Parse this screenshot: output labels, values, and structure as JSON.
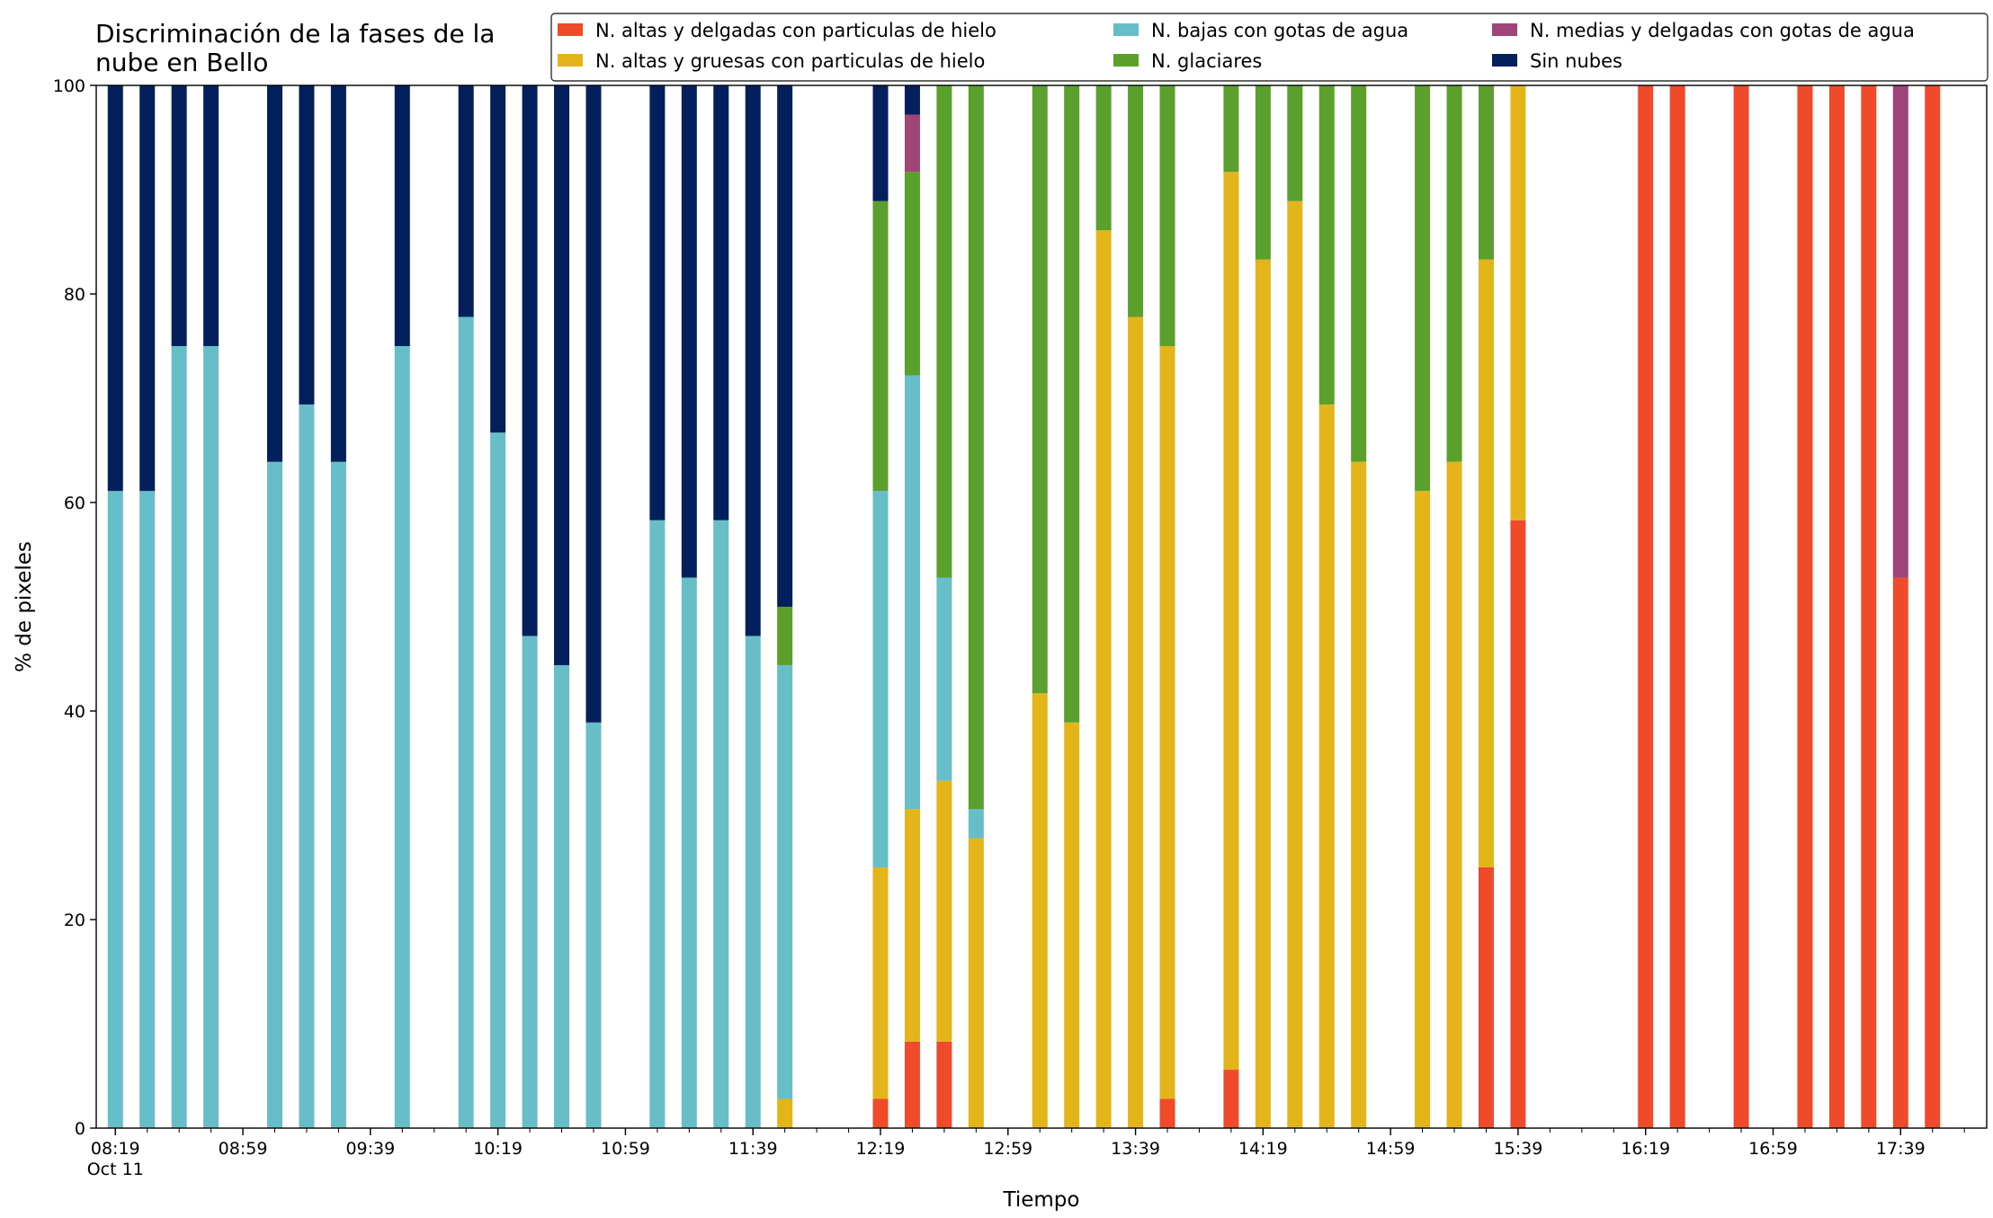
{
  "chart_data": {
    "type": "stacked_bar",
    "title": "Discriminación de la fases de la\nnube en Bello",
    "xlabel": "Tiempo",
    "ylabel": "% de pixeles",
    "x_date_label": "Oct 11",
    "x": [
      "08:19",
      "08:29",
      "08:39",
      "08:49",
      "09:09",
      "09:19",
      "09:29",
      "09:49",
      "10:09",
      "10:19",
      "10:29",
      "10:39",
      "10:49",
      "11:09",
      "11:19",
      "11:29",
      "11:39",
      "11:49",
      "12:19",
      "12:29",
      "12:39",
      "12:49",
      "13:09",
      "13:19",
      "13:29",
      "13:39",
      "13:49",
      "14:09",
      "14:19",
      "14:29",
      "14:39",
      "14:49",
      "15:09",
      "15:19",
      "15:29",
      "15:39",
      "16:19",
      "16:29",
      "16:49",
      "17:09",
      "17:19",
      "17:29",
      "17:39",
      "17:49"
    ],
    "xlim": [
      "08:13",
      "18:06"
    ],
    "xticks": [
      "08:19",
      "08:59",
      "09:39",
      "10:19",
      "10:59",
      "11:39",
      "12:19",
      "12:59",
      "13:39",
      "14:19",
      "14:59",
      "15:39",
      "16:19",
      "16:59",
      "17:39"
    ],
    "ylim": [
      0,
      100
    ],
    "yticks": [
      0,
      20,
      40,
      60,
      80,
      100
    ],
    "legend": "upper right",
    "series": [
      {
        "name": "N. altas y delgadas con particulas de hielo",
        "color": "#ef4b2b",
        "values": [
          0,
          0,
          0,
          0,
          0,
          0,
          0,
          0,
          0,
          0,
          0,
          0,
          0,
          0,
          0,
          0,
          0,
          0,
          2.8,
          8.3,
          8.3,
          0,
          0,
          0,
          0,
          0,
          2.8,
          5.6,
          0,
          0,
          0,
          0,
          0,
          0,
          25,
          58.3,
          100,
          100,
          100,
          100,
          100,
          100,
          52.8,
          100
        ]
      },
      {
        "name": "N. altas y gruesas con particulas de hielo",
        "color": "#e3b51b",
        "values": [
          0,
          0,
          0,
          0,
          0,
          0,
          0,
          0,
          0,
          0,
          0,
          0,
          0,
          0,
          0,
          0,
          0,
          2.8,
          22.2,
          22.3,
          25,
          27.8,
          41.7,
          38.9,
          86.1,
          77.8,
          72.2,
          86.1,
          83.3,
          88.9,
          69.4,
          63.9,
          61.1,
          63.9,
          58.3,
          41.7,
          0,
          0,
          0,
          0,
          0,
          0,
          0,
          0
        ]
      },
      {
        "name": "N. bajas con gotas de agua",
        "color": "#67bdc8",
        "values": [
          61.1,
          61.1,
          75,
          75,
          63.9,
          69.4,
          63.9,
          75,
          77.8,
          66.7,
          47.2,
          44.4,
          38.9,
          58.3,
          52.8,
          58.3,
          47.2,
          41.6,
          36.1,
          41.6,
          19.5,
          2.8,
          0,
          0,
          0,
          0,
          0,
          0,
          0,
          0,
          0,
          0,
          0,
          0,
          0,
          0,
          0,
          0,
          0,
          0,
          0,
          0,
          0,
          0
        ]
      },
      {
        "name": "N. glaciares",
        "color": "#5b9f2d",
        "values": [
          0,
          0,
          0,
          0,
          0,
          0,
          0,
          0,
          0,
          0,
          0,
          0,
          0,
          0,
          0,
          0,
          0,
          5.6,
          27.8,
          19.5,
          47.2,
          69.4,
          58.3,
          61.1,
          13.9,
          22.2,
          25,
          8.3,
          16.7,
          11.1,
          30.6,
          36.1,
          38.9,
          36.1,
          16.7,
          0,
          0,
          0,
          0,
          0,
          0,
          0,
          0,
          0
        ]
      },
      {
        "name": "N. medias y delgadas con gotas de agua",
        "color": "#a0457a",
        "values": [
          0,
          0,
          0,
          0,
          0,
          0,
          0,
          0,
          0,
          0,
          0,
          0,
          0,
          0,
          0,
          0,
          0,
          0,
          0,
          5.5,
          0,
          0,
          0,
          0,
          0,
          0,
          0,
          0,
          0,
          0,
          0,
          0,
          0,
          0,
          0,
          0,
          0,
          0,
          0,
          0,
          0,
          0,
          47.2,
          0
        ]
      },
      {
        "name": "Sin nubes",
        "color": "#03205d",
        "values": [
          38.9,
          38.9,
          25,
          25,
          36.1,
          30.6,
          36.1,
          25,
          22.2,
          33.3,
          52.8,
          55.6,
          61.1,
          41.7,
          47.2,
          41.7,
          52.8,
          50,
          11.1,
          2.8,
          0,
          0,
          0,
          0,
          0,
          0,
          0,
          0,
          0,
          0,
          0,
          0,
          0,
          0,
          0,
          0,
          0,
          0,
          0,
          0,
          0,
          0,
          0,
          0
        ]
      }
    ]
  }
}
